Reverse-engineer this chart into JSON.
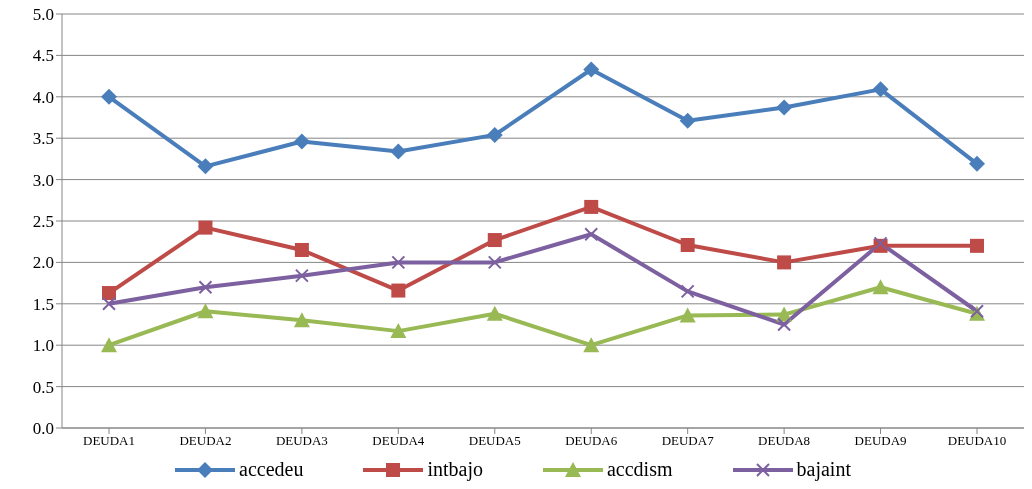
{
  "chart_data": {
    "type": "line",
    "categories": [
      "DEUDA1",
      "DEUDA2",
      "DEUDA3",
      "DEUDA4",
      "DEUDA5",
      "DEUDA6",
      "DEUDA7",
      "DEUDA8",
      "DEUDA9",
      "DEUDA10"
    ],
    "series": [
      {
        "name": "accedeu",
        "color": "#4a7ebb",
        "marker": "diamond",
        "values": [
          4.0,
          3.16,
          3.46,
          3.34,
          3.54,
          4.33,
          3.71,
          3.87,
          4.09,
          3.19
        ]
      },
      {
        "name": "intbajo",
        "color": "#be4b48",
        "marker": "square",
        "values": [
          1.63,
          2.42,
          2.15,
          1.66,
          2.27,
          2.67,
          2.21,
          2.0,
          2.2,
          2.2
        ]
      },
      {
        "name": "accdism",
        "color": "#98b954",
        "marker": "triangle",
        "values": [
          1.0,
          1.41,
          1.3,
          1.17,
          1.38,
          1.0,
          1.36,
          1.37,
          1.7,
          1.38
        ]
      },
      {
        "name": "bajaint",
        "color": "#7d60a0",
        "marker": "cross",
        "values": [
          1.5,
          1.7,
          1.84,
          2.0,
          2.0,
          2.34,
          1.65,
          1.25,
          2.23,
          1.41
        ]
      }
    ],
    "ylim": [
      0,
      5
    ],
    "yticks": [
      {
        "value": 0,
        "label": "0.0"
      },
      {
        "value": 0.5,
        "label": "0.5"
      },
      {
        "value": 1,
        "label": "1.0"
      },
      {
        "value": 1.5,
        "label": "1.5"
      },
      {
        "value": 2,
        "label": "2.0"
      },
      {
        "value": 2.5,
        "label": "2.5"
      },
      {
        "value": 3,
        "label": "3.0"
      },
      {
        "value": 3.5,
        "label": "3.5"
      },
      {
        "value": 4,
        "label": "4.0"
      },
      {
        "value": 4.5,
        "label": "4.5"
      },
      {
        "value": 5,
        "label": "5.0"
      }
    ],
    "grid": "y",
    "legend": "bottom",
    "line_style": "solid"
  }
}
